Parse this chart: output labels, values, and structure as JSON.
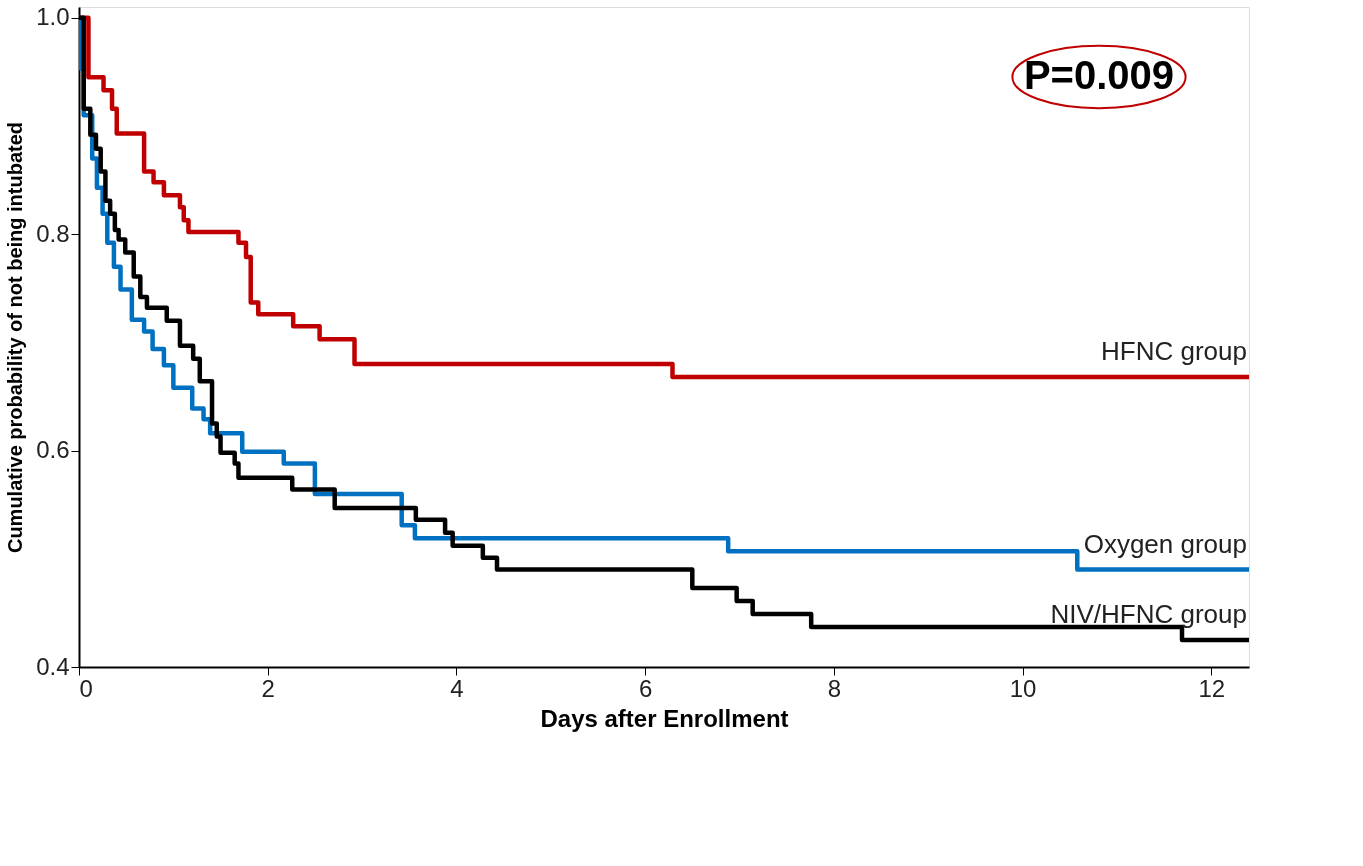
{
  "chart_data": {
    "type": "step",
    "xlabel": "Days after Enrollment",
    "ylabel": "Cumulative probability of not being intubated",
    "xlim": [
      0,
      12.4
    ],
    "ylim": [
      0.4,
      1.01
    ],
    "xticks": [
      0,
      2,
      4,
      6,
      8,
      10,
      12
    ],
    "yticks": [
      0.4,
      0.6,
      0.8,
      {
        "value": 1.0,
        "label": "1.0"
      }
    ],
    "grid": false,
    "legend": false,
    "marker": "none",
    "line_style": "solid",
    "annotations": [
      "P=0.009"
    ],
    "series": [
      {
        "name": "HFNC group",
        "color": "#c00000",
        "x": [
          0,
          0.1,
          0.26,
          0.35,
          0.4,
          0.69,
          0.79,
          0.9,
          1.07,
          1.11,
          1.16,
          1.69,
          1.77,
          1.82,
          1.9,
          2.27,
          2.55,
          2.92,
          6.29,
          12.4
        ],
        "values": [
          1.0,
          0.945,
          0.933,
          0.916,
          0.893,
          0.858,
          0.848,
          0.836,
          0.825,
          0.813,
          0.802,
          0.792,
          0.779,
          0.737,
          0.726,
          0.715,
          0.703,
          0.68,
          0.668,
          0.668
        ]
      },
      {
        "name": "Oxygen group",
        "color": "#0070c0",
        "x": [
          0,
          0.02,
          0.05,
          0.14,
          0.19,
          0.25,
          0.3,
          0.37,
          0.44,
          0.56,
          0.69,
          0.78,
          0.9,
          1.0,
          1.2,
          1.32,
          1.39,
          1.73,
          2.17,
          2.5,
          3.42,
          3.56,
          6.88,
          10.58,
          12.4
        ],
        "values": [
          1.0,
          0.953,
          0.91,
          0.87,
          0.843,
          0.819,
          0.792,
          0.77,
          0.749,
          0.721,
          0.71,
          0.694,
          0.679,
          0.658,
          0.639,
          0.629,
          0.616,
          0.599,
          0.588,
          0.56,
          0.531,
          0.519,
          0.507,
          0.49,
          0.49
        ]
      },
      {
        "name": "NIV/HFNC group",
        "color": "#000000",
        "x": [
          0,
          0.05,
          0.12,
          0.18,
          0.23,
          0.28,
          0.33,
          0.38,
          0.42,
          0.49,
          0.58,
          0.65,
          0.72,
          0.93,
          1.07,
          1.21,
          1.28,
          1.41,
          1.46,
          1.5,
          1.65,
          1.69,
          2.26,
          2.71,
          3.57,
          3.88,
          3.96,
          4.28,
          4.43,
          6.5,
          6.97,
          7.14,
          7.76,
          11.69,
          12.4
        ],
        "values": [
          1.0,
          0.916,
          0.892,
          0.879,
          0.858,
          0.831,
          0.819,
          0.804,
          0.795,
          0.783,
          0.761,
          0.742,
          0.732,
          0.72,
          0.697,
          0.685,
          0.664,
          0.625,
          0.613,
          0.598,
          0.588,
          0.575,
          0.564,
          0.547,
          0.536,
          0.524,
          0.512,
          0.501,
          0.49,
          0.473,
          0.461,
          0.449,
          0.437,
          0.425,
          0.425
        ]
      }
    ]
  }
}
